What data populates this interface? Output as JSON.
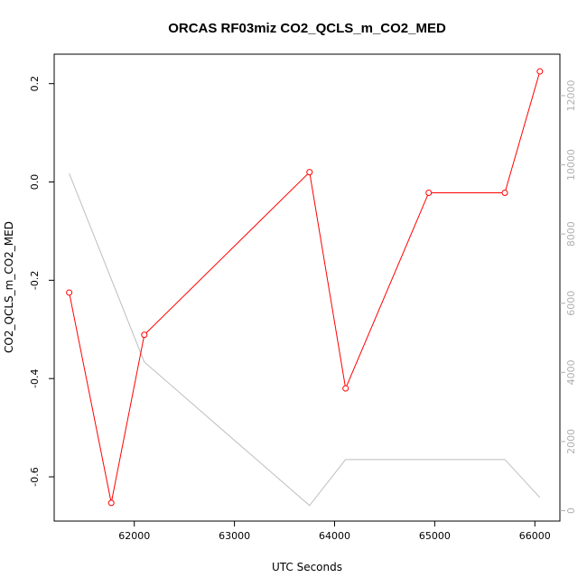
{
  "chart_data": {
    "type": "line",
    "title": "ORCAS RF03miz CO2_QCLS_m_CO2_MED",
    "xlabel": "UTC Seconds",
    "ylabel": "CO2_QCLS_m_CO2_MED",
    "xlim": [
      61200,
      66250
    ],
    "ylim": [
      -0.69,
      0.26
    ],
    "y2lim": [
      -300,
      13200
    ],
    "x_ticks": [
      62000,
      63000,
      64000,
      65000,
      66000
    ],
    "y_ticks": [
      -0.6,
      -0.4,
      -0.2,
      0.0,
      0.2
    ],
    "y_tick_labels": [
      "-0.6",
      "-0.4",
      "-0.2",
      "0.0",
      "0.2"
    ],
    "y2_ticks": [
      0,
      2000,
      4000,
      6000,
      8000,
      10000,
      12000
    ],
    "series": [
      {
        "axis": "left",
        "color": "#ff0000",
        "markers": true,
        "x": [
          61350,
          61770,
          62100,
          63750,
          64110,
          64940,
          65700,
          66050
        ],
        "y": [
          -0.225,
          -0.653,
          -0.311,
          0.02,
          -0.42,
          -0.022,
          -0.022,
          0.225
        ]
      },
      {
        "axis": "right",
        "color": "#bebebe",
        "markers": false,
        "x": [
          61350,
          62100,
          63750,
          64110,
          64940,
          65700,
          66050
        ],
        "y": [
          9750,
          4300,
          150,
          1480,
          1480,
          1480,
          380
        ]
      }
    ],
    "grid": false
  }
}
